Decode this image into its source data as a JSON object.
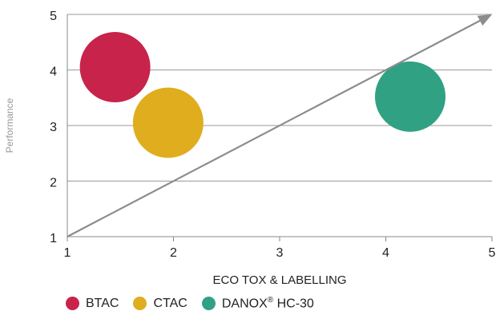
{
  "chart_data": {
    "type": "scatter",
    "subtype": "bubble",
    "xlabel": "ECO TOX & LABELLING",
    "ylabel": "Performance",
    "xlim": [
      1,
      5
    ],
    "ylim": [
      1,
      5
    ],
    "x_ticks": [
      1,
      2,
      3,
      4,
      5
    ],
    "y_ticks": [
      1,
      2,
      3,
      4,
      5
    ],
    "grid": "horizontal",
    "series": [
      {
        "name": "BTAC",
        "x": 1.45,
        "y": 4.05,
        "color": "#c8234a"
      },
      {
        "name": "CTAC",
        "x": 1.95,
        "y": 3.05,
        "color": "#e0ad1f"
      },
      {
        "name": "DANOX® HC-30",
        "x": 4.23,
        "y": 3.52,
        "color": "#31a184"
      }
    ],
    "trend_arrow": {
      "from": [
        1,
        1
      ],
      "to": [
        5,
        5
      ],
      "color": "#8c8c8c"
    },
    "legend": {
      "position": "bottom-left",
      "items": [
        {
          "label": "BTAC",
          "color": "#c8234a"
        },
        {
          "label": "CTAC",
          "color": "#e0ad1f"
        },
        {
          "label": "DANOX",
          "superscript": "®",
          "suffix": "HC-30",
          "color": "#31a184"
        }
      ]
    }
  }
}
